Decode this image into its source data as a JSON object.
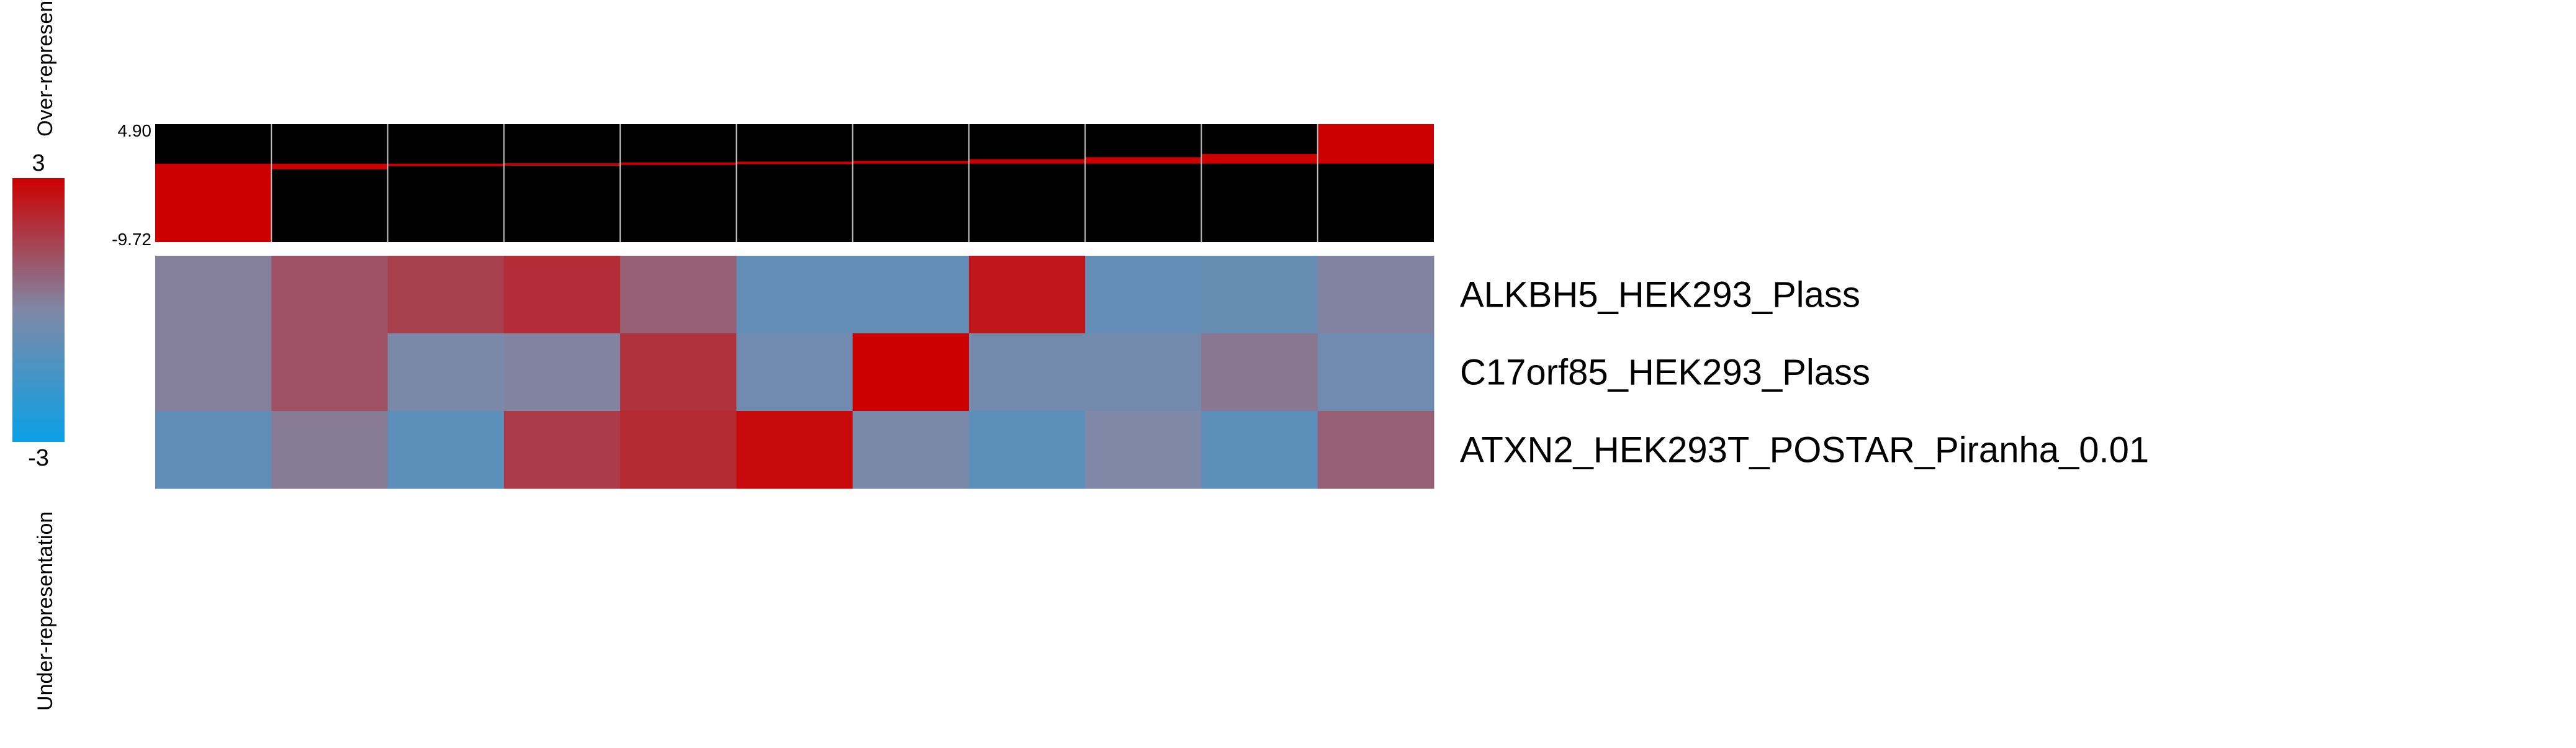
{
  "chart_data": {
    "type": "heatmap",
    "colorbar": {
      "max_label": "3",
      "min_label": "-3",
      "vmin": -3,
      "vmax": 3,
      "colors": {
        "low": "#0aa0e6",
        "mid": "#7f88a6",
        "high": "#cc0000"
      },
      "top_label": "Over-representation",
      "bottom_label": "Under-representation"
    },
    "top_bars": {
      "max_label": "4.90",
      "min_label": "-9.72",
      "ymin": -9.72,
      "ymax": 4.9,
      "bar_color": "#cc0000",
      "background": "#000000",
      "values": [
        -9.72,
        -0.7,
        -0.25,
        0.05,
        0.15,
        0.25,
        0.35,
        0.55,
        0.8,
        1.2,
        4.9
      ]
    },
    "rows": [
      {
        "label": "ALKBH5_HEK293_Plass",
        "values": [
          0.2,
          1.2,
          1.6,
          2.0,
          0.9,
          -0.7,
          -0.7,
          2.5,
          -0.7,
          -0.6,
          0.1
        ]
      },
      {
        "label": "C17orf85_HEK293_Plass",
        "values": [
          0.2,
          1.2,
          -0.1,
          0.1,
          1.9,
          -0.4,
          3.0,
          -0.3,
          -0.3,
          0.4,
          -0.4
        ]
      },
      {
        "label": "ATXN2_HEK293T_POSTAR_Piranha_0.01",
        "values": [
          -0.8,
          0.3,
          -0.9,
          1.7,
          2.1,
          2.8,
          -0.1,
          -0.9,
          0.0,
          -0.9,
          0.9
        ]
      }
    ]
  }
}
